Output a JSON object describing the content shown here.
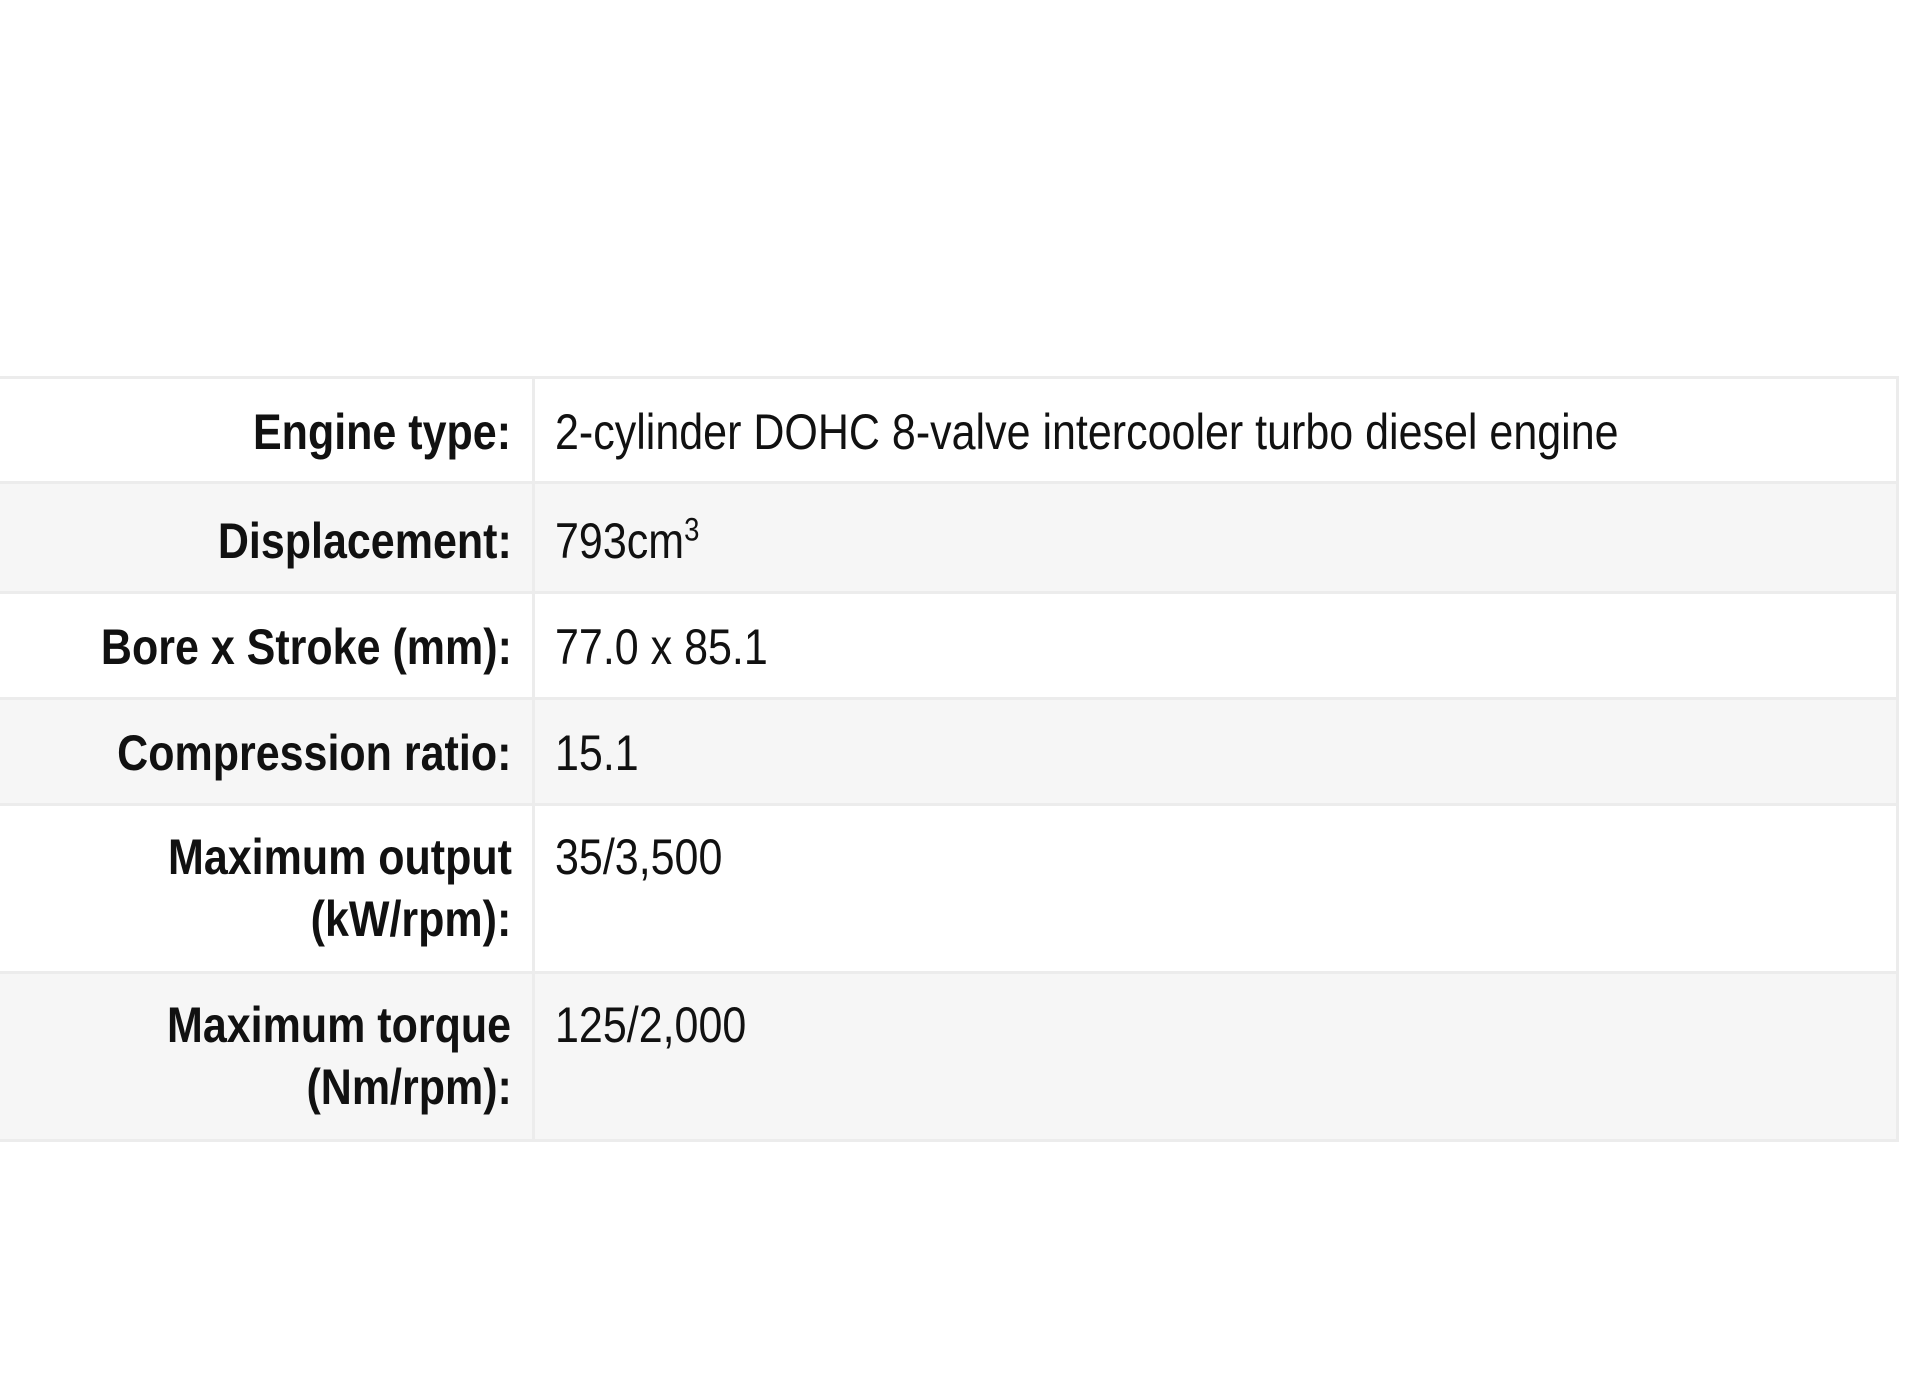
{
  "spec_table": {
    "rows": [
      {
        "label": "Engine type:",
        "value": "2-cylinder DOHC 8-valve intercooler turbo diesel engine"
      },
      {
        "label": "Displacement:",
        "value": "793cm",
        "value_sup": "3"
      },
      {
        "label": "Bore x Stroke (mm):",
        "value": "77.0 x 85.1"
      },
      {
        "label": "Compression ratio:",
        "value": "15.1"
      },
      {
        "label_line1": "Maximum output",
        "label_line2": "(kW/rpm):",
        "value": "35/3,500"
      },
      {
        "label_line1": "Maximum torque",
        "label_line2": "(Nm/rpm):",
        "value": "125/2,000"
      }
    ]
  }
}
